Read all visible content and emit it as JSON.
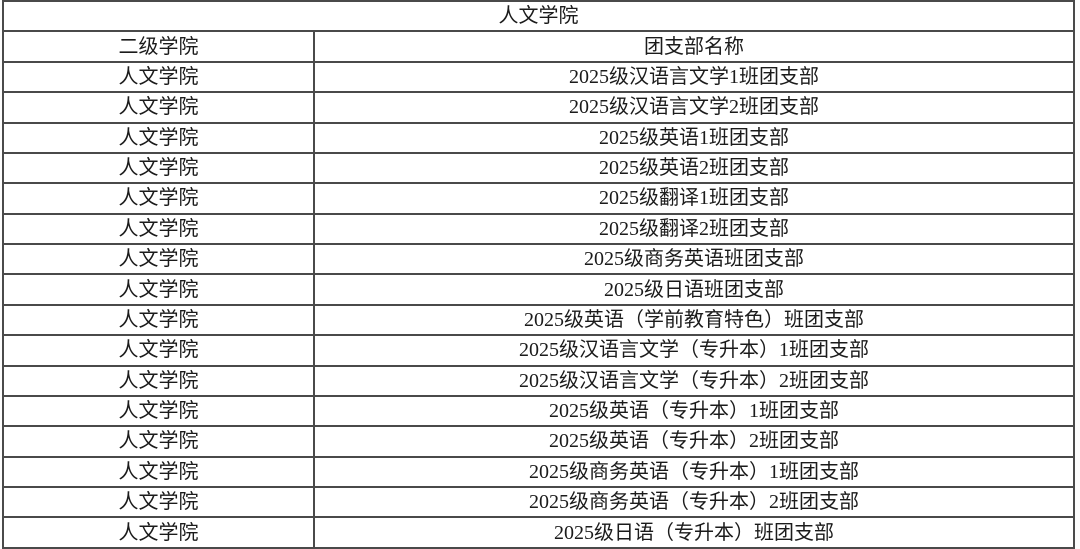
{
  "table": {
    "title": "人文学院",
    "columns": {
      "college": "二级学院",
      "branch": "团支部名称"
    },
    "rows": [
      {
        "college": "人文学院",
        "branch": "2025级汉语言文学1班团支部"
      },
      {
        "college": "人文学院",
        "branch": "2025级汉语言文学2班团支部"
      },
      {
        "college": "人文学院",
        "branch": "2025级英语1班团支部"
      },
      {
        "college": "人文学院",
        "branch": "2025级英语2班团支部"
      },
      {
        "college": "人文学院",
        "branch": "2025级翻译1班团支部"
      },
      {
        "college": "人文学院",
        "branch": "2025级翻译2班团支部"
      },
      {
        "college": "人文学院",
        "branch": "2025级商务英语班团支部"
      },
      {
        "college": "人文学院",
        "branch": "2025级日语班团支部"
      },
      {
        "college": "人文学院",
        "branch": "2025级英语（学前教育特色）班团支部"
      },
      {
        "college": "人文学院",
        "branch": "2025级汉语言文学（专升本）1班团支部"
      },
      {
        "college": "人文学院",
        "branch": "2025级汉语言文学（专升本）2班团支部"
      },
      {
        "college": "人文学院",
        "branch": "2025级英语（专升本）1班团支部"
      },
      {
        "college": "人文学院",
        "branch": "2025级英语（专升本）2班团支部"
      },
      {
        "college": "人文学院",
        "branch": "2025级商务英语（专升本）1班团支部"
      },
      {
        "college": "人文学院",
        "branch": "2025级商务英语（专升本）2班团支部"
      },
      {
        "college": "人文学院",
        "branch": "2025级日语（专升本）班团支部"
      }
    ]
  },
  "colors": {
    "border": "#4a4a4a",
    "text": "#1b1b1b",
    "background": "#ffffff"
  }
}
